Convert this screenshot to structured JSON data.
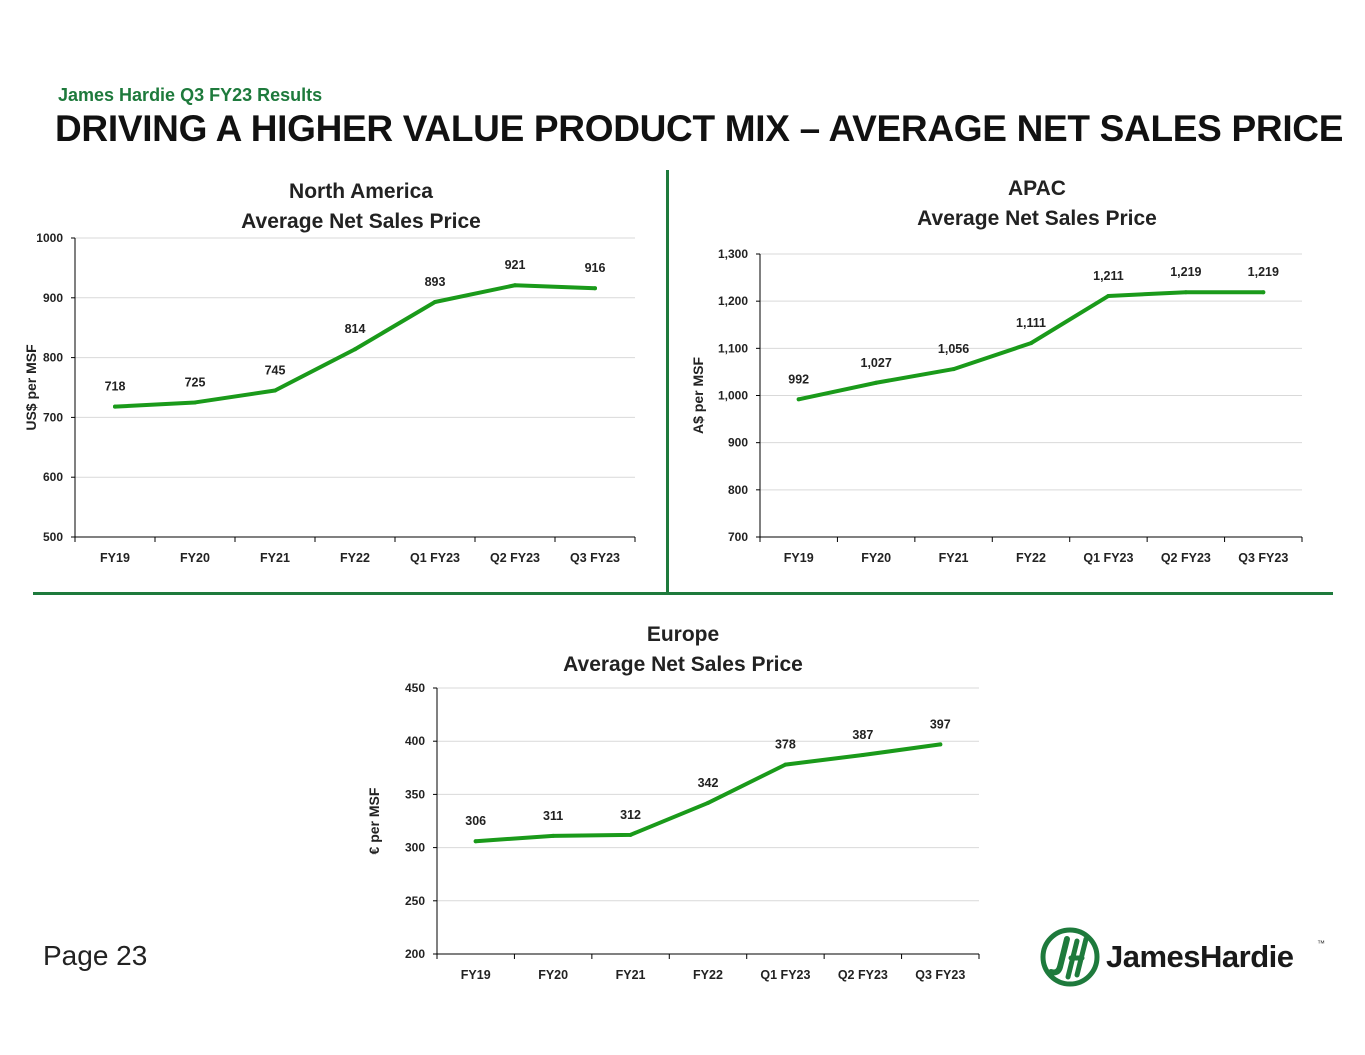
{
  "header": {
    "subtitle": "James Hardie Q3 FY23 Results",
    "title": "DRIVING A HIGHER VALUE PRODUCT MIX – AVERAGE NET SALES PRICE"
  },
  "footer": {
    "page": "Page 23",
    "logo_text": "JamesHardie",
    "logo_tm": "™",
    "logo_icon": "jh-monogram-icon"
  },
  "colors": {
    "accent": "#1e7a3c",
    "line": "#1a9a1a",
    "grid": "#d9d9d9",
    "axis": "#000000"
  },
  "chart_data": [
    {
      "id": "na",
      "type": "line",
      "title_line1": "North America",
      "title_line2": "Average Net Sales Price",
      "xlabel": "",
      "ylabel": "US$ per MSF",
      "categories": [
        "FY19",
        "FY20",
        "FY21",
        "FY22",
        "Q1 FY23",
        "Q2 FY23",
        "Q3 FY23"
      ],
      "values": [
        718,
        725,
        745,
        814,
        893,
        921,
        916
      ],
      "value_labels": [
        "718",
        "725",
        "745",
        "814",
        "893",
        "921",
        "916"
      ],
      "ylim": [
        500,
        1000
      ],
      "yticks": [
        500,
        600,
        700,
        800,
        900,
        1000
      ],
      "ytick_labels": [
        "500",
        "600",
        "700",
        "800",
        "900",
        "1000"
      ],
      "grid": true,
      "legend": "none"
    },
    {
      "id": "apac",
      "type": "line",
      "title_line1": "APAC",
      "title_line2": "Average Net Sales Price",
      "xlabel": "",
      "ylabel": "A$ per MSF",
      "categories": [
        "FY19",
        "FY20",
        "FY21",
        "FY22",
        "Q1 FY23",
        "Q2 FY23",
        "Q3 FY23"
      ],
      "values": [
        992,
        1027,
        1056,
        1111,
        1211,
        1219,
        1219
      ],
      "value_labels": [
        "992",
        "1,027",
        "1,056",
        "1,111",
        "1,211",
        "1,219",
        "1,219"
      ],
      "ylim": [
        700,
        1300
      ],
      "yticks": [
        700,
        800,
        900,
        1000,
        1100,
        1200,
        1300
      ],
      "ytick_labels": [
        "700",
        "800",
        "900",
        "1,000",
        "1,100",
        "1,200",
        "1,300"
      ],
      "grid": true,
      "legend": "none"
    },
    {
      "id": "eu",
      "type": "line",
      "title_line1": "Europe",
      "title_line2": "Average Net Sales Price",
      "xlabel": "",
      "ylabel": "€ per MSF",
      "categories": [
        "FY19",
        "FY20",
        "FY21",
        "FY22",
        "Q1 FY23",
        "Q2 FY23",
        "Q3 FY23"
      ],
      "values": [
        306,
        311,
        312,
        342,
        378,
        387,
        397
      ],
      "value_labels": [
        "306",
        "311",
        "312",
        "342",
        "378",
        "387",
        "397"
      ],
      "ylim": [
        200,
        450
      ],
      "yticks": [
        200,
        250,
        300,
        350,
        400,
        450
      ],
      "ytick_labels": [
        "200",
        "250",
        "300",
        "350",
        "400",
        "450"
      ],
      "grid": true,
      "legend": "none"
    }
  ]
}
